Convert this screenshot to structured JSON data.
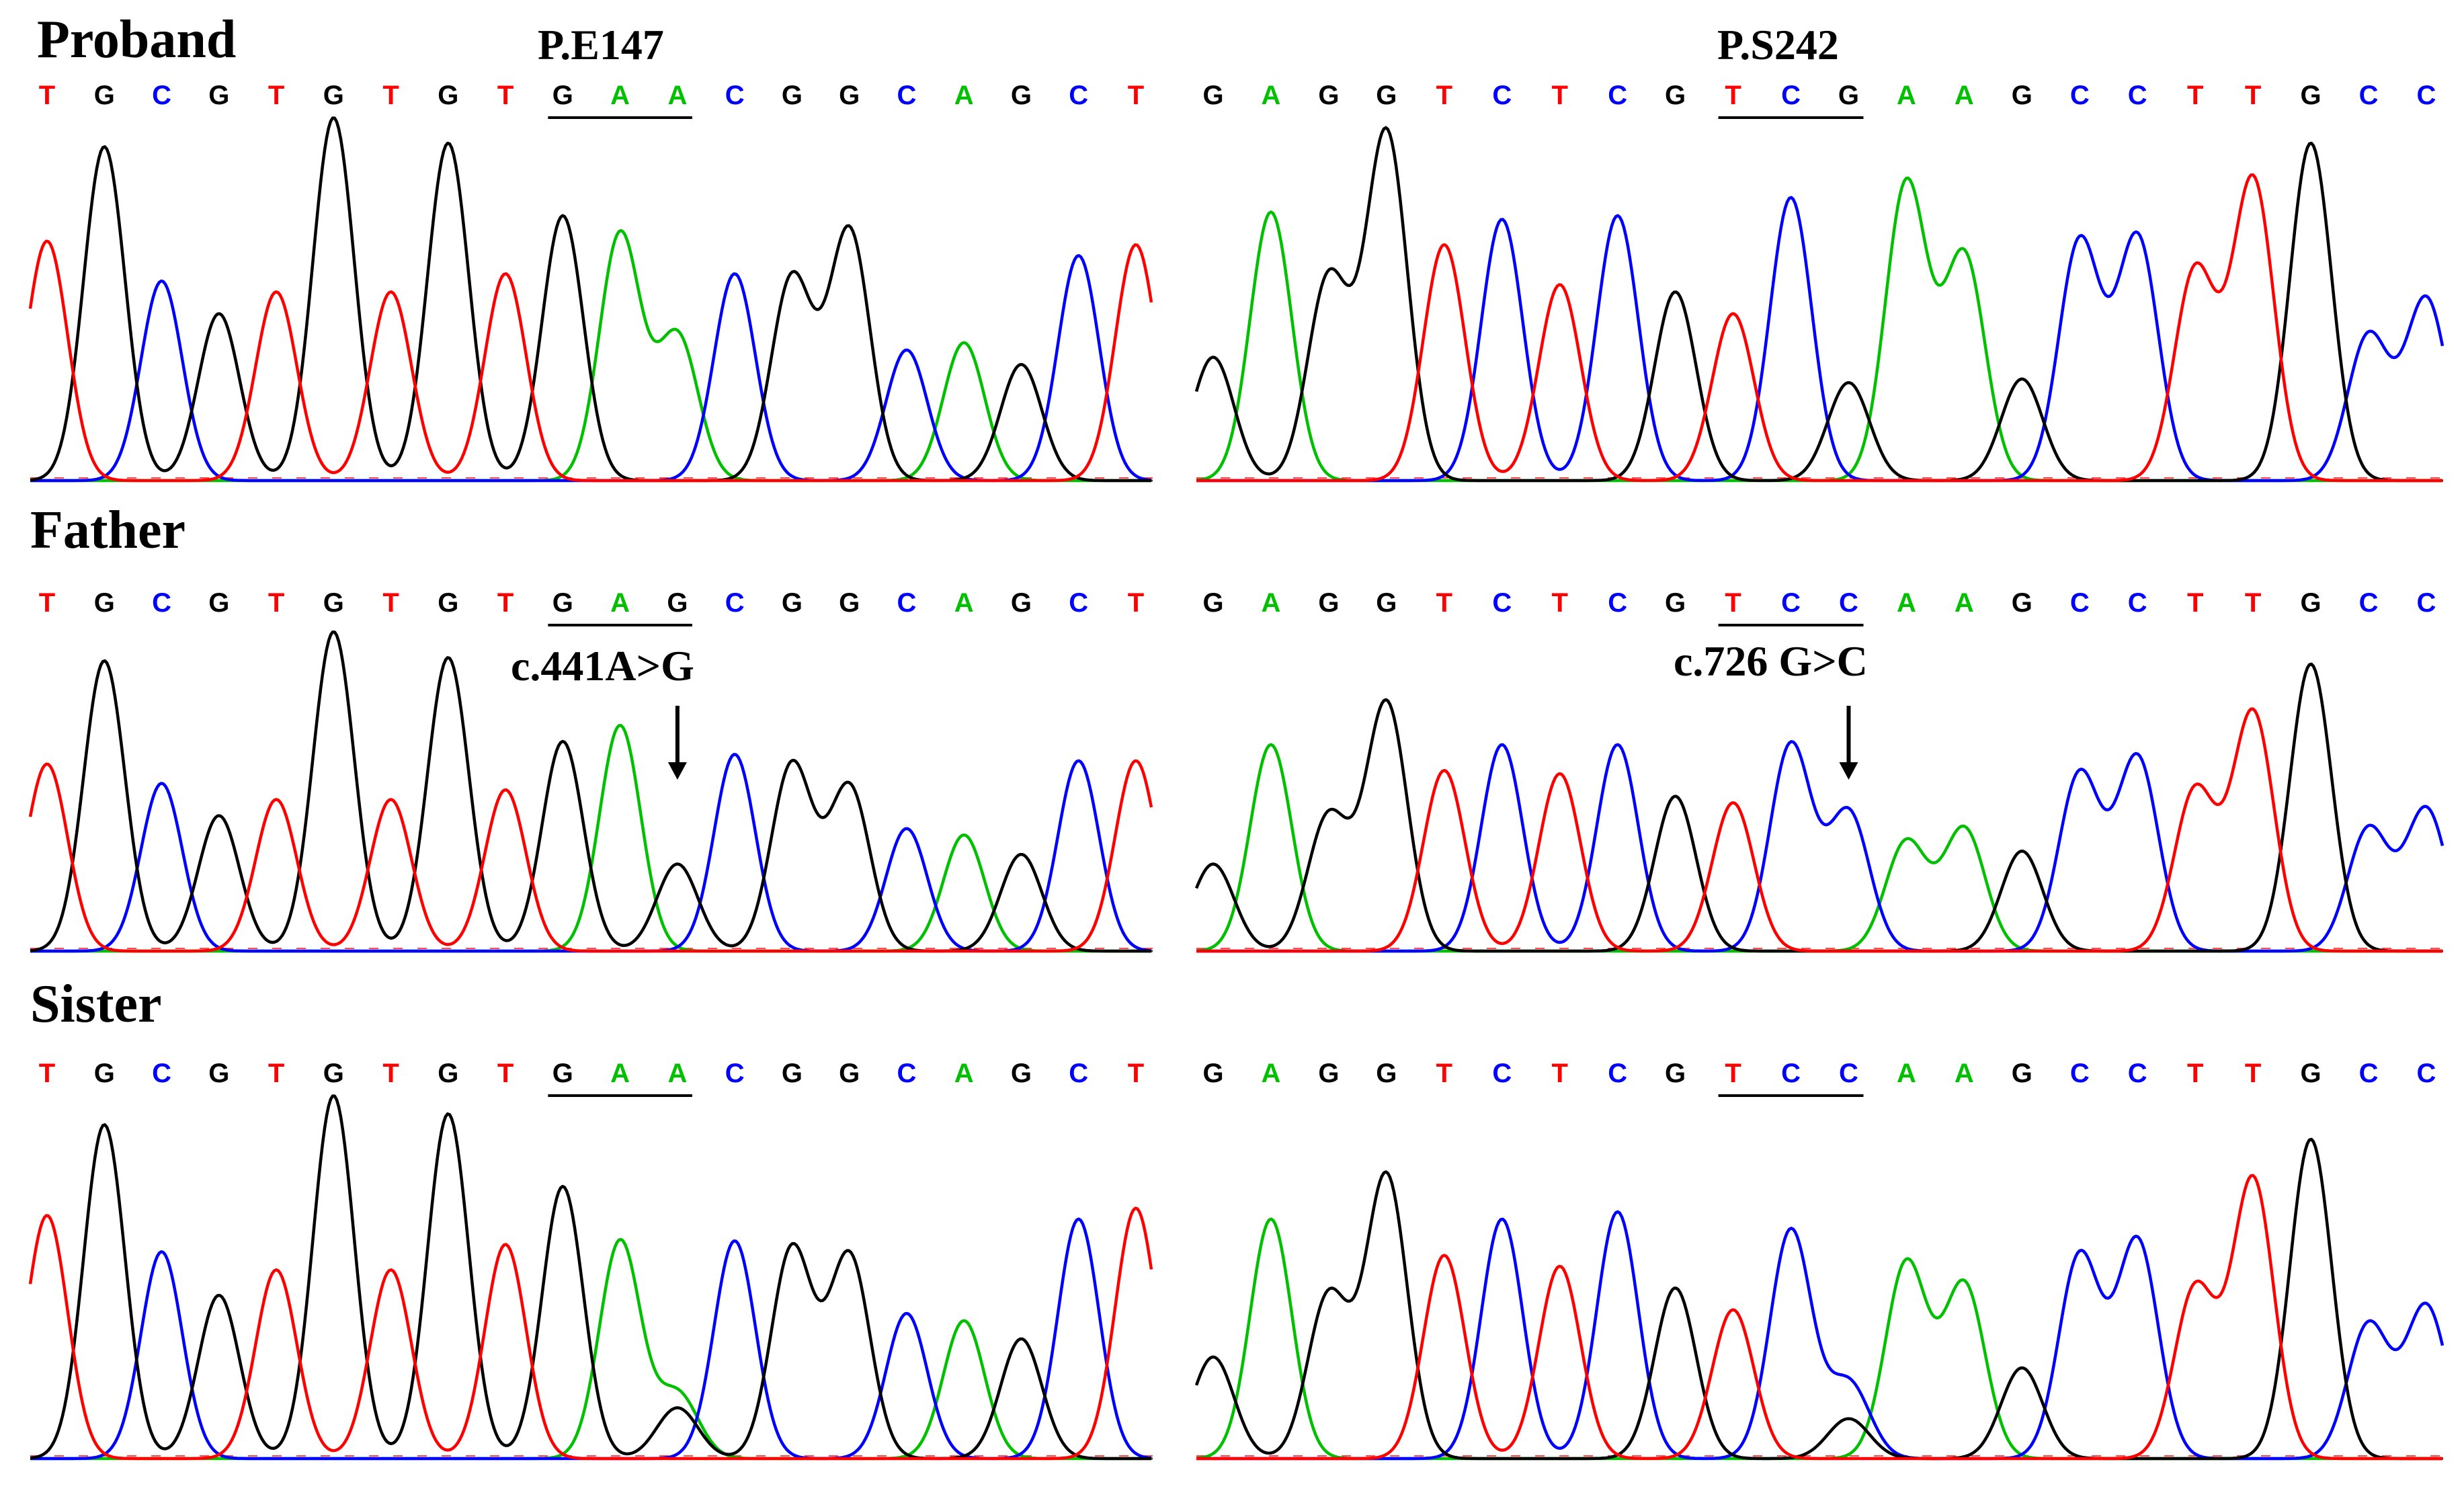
{
  "colors": {
    "A": "#00c000",
    "C": "#0000ff",
    "G": "#000000",
    "T": "#ff0000"
  },
  "rows": [
    {
      "label": "Proband",
      "panels": [
        {
          "codon_label": "P.E147",
          "annotation": "",
          "sequence": "TGCGTGTGTGAACGGCAGCT",
          "codon_bases": [
            9,
            10,
            11
          ],
          "peaks": [
            0.66,
            0.92,
            0.55,
            0.46,
            0.52,
            1.0,
            0.52,
            0.93,
            0.57,
            0.73,
            0.68,
            0.4,
            0.57,
            0.56,
            0.69,
            0.36,
            0.38,
            0.32,
            0.62,
            0.65
          ],
          "minor_peaks": [],
          "arrow_base": null
        },
        {
          "codon_label": "P.S242",
          "annotation": "",
          "sequence": "GAGGTCTCGTCGAAGCCTTGCC",
          "codon_bases": [
            9,
            10,
            11
          ],
          "peaks": [
            0.34,
            0.74,
            0.56,
            0.96,
            0.65,
            0.72,
            0.54,
            0.73,
            0.52,
            0.46,
            0.78,
            0.27,
            0.82,
            0.62,
            0.28,
            0.66,
            0.67,
            0.58,
            0.83,
            0.93,
            0.4,
            0.5
          ],
          "minor_peaks": [],
          "arrow_base": null
        }
      ]
    },
    {
      "label": "Father",
      "panels": [
        {
          "codon_label": "",
          "annotation": "c.441A>G",
          "sequence": "TGCGTGTGTGAGCGGCAGCT",
          "codon_bases": [
            9,
            10,
            11
          ],
          "peaks": [
            0.58,
            0.9,
            0.52,
            0.42,
            0.47,
            0.99,
            0.47,
            0.91,
            0.5,
            0.65,
            0.7,
            0.27,
            0.61,
            0.58,
            0.51,
            0.38,
            0.36,
            0.3,
            0.59,
            0.59
          ],
          "minor_peaks": [],
          "arrow_base": 11
        },
        {
          "codon_label": "",
          "annotation": "c.726 G>C",
          "sequence": "GAGGTCTCGTCCAAGCCTTGCC",
          "codon_bases": [
            9,
            10,
            11
          ],
          "peaks": [
            0.27,
            0.64,
            0.42,
            0.77,
            0.56,
            0.64,
            0.55,
            0.64,
            0.48,
            0.46,
            0.64,
            0.43,
            0.34,
            0.38,
            0.31,
            0.55,
            0.6,
            0.5,
            0.74,
            0.89,
            0.38,
            0.44
          ],
          "minor_peaks": [],
          "arrow_base": 11
        }
      ]
    },
    {
      "label": "Sister",
      "panels": [
        {
          "codon_label": "",
          "annotation": "",
          "sequence": "TGCGTGTGTGAACGGCAGCT",
          "codon_bases": [
            9,
            10,
            11
          ],
          "peaks": [
            0.67,
            0.92,
            0.57,
            0.45,
            0.52,
            1.0,
            0.52,
            0.95,
            0.59,
            0.75,
            0.6,
            0.18,
            0.6,
            0.58,
            0.56,
            0.4,
            0.38,
            0.33,
            0.66,
            0.69
          ],
          "minor_peaks": [
            {
              "base": 11,
              "letter": "G",
              "height": 0.14
            }
          ],
          "arrow_base": null
        },
        {
          "codon_label": "",
          "annotation": "",
          "sequence": "GAGGTCTCGTCCAAGCCTTGCC",
          "codon_bases": [
            9,
            10,
            11
          ],
          "peaks": [
            0.28,
            0.66,
            0.45,
            0.78,
            0.56,
            0.66,
            0.53,
            0.68,
            0.47,
            0.41,
            0.63,
            0.21,
            0.54,
            0.48,
            0.25,
            0.56,
            0.6,
            0.47,
            0.77,
            0.88,
            0.37,
            0.42
          ],
          "minor_peaks": [
            {
              "base": 11,
              "letter": "G",
              "height": 0.11
            }
          ],
          "arrow_base": null
        }
      ]
    }
  ]
}
